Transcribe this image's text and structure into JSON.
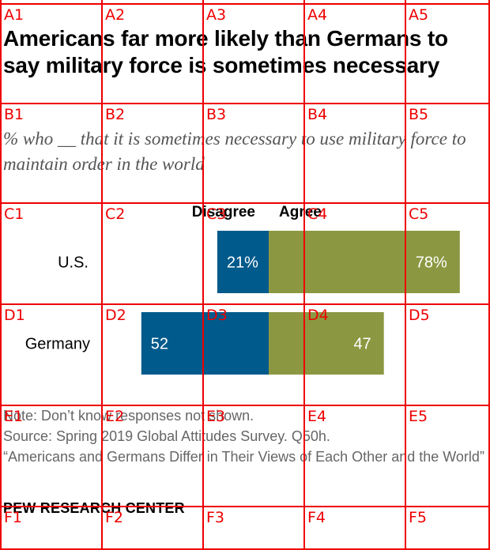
{
  "title": "Americans far more likely than Germans to say military force is sometimes necessary",
  "subtitle": "% who __ that it is sometimes necessary to use military force to maintain order in the world",
  "chart_data": {
    "type": "bar",
    "orientation": "horizontal",
    "stacking": "diverging",
    "categories": [
      "U.S.",
      "Germany"
    ],
    "series": [
      {
        "name": "Disagree",
        "values": [
          21,
          52
        ],
        "labels": [
          "21%",
          "52"
        ],
        "color": "#005a8b"
      },
      {
        "name": "Agree",
        "values": [
          78,
          47
        ],
        "labels": [
          "78%",
          "47"
        ],
        "color": "#8b9841"
      }
    ],
    "legend_placement": "top, above bars"
  },
  "notes": {
    "note": "Note: Don’t know responses not shown.",
    "source": "Source: Spring 2019 Global Attitudes Survey. Q50h.",
    "report": "“Americans and Germans Differ in Their Views of Each Other and the World”"
  },
  "brand": "PEW RESEARCH CENTER",
  "overlay": {
    "color": "#ee0000",
    "cell_labels": [
      "A1",
      "A2",
      "A3",
      "A4",
      "A5",
      "B1",
      "B2",
      "B3",
      "B4",
      "B5",
      "C1",
      "C2",
      "C3",
      "C4",
      "C5",
      "D1",
      "D2",
      "D3",
      "D4",
      "D5",
      "E1",
      "E2",
      "E3",
      "E4",
      "E5",
      "F1",
      "F2",
      "F3",
      "F4",
      "F5"
    ]
  }
}
